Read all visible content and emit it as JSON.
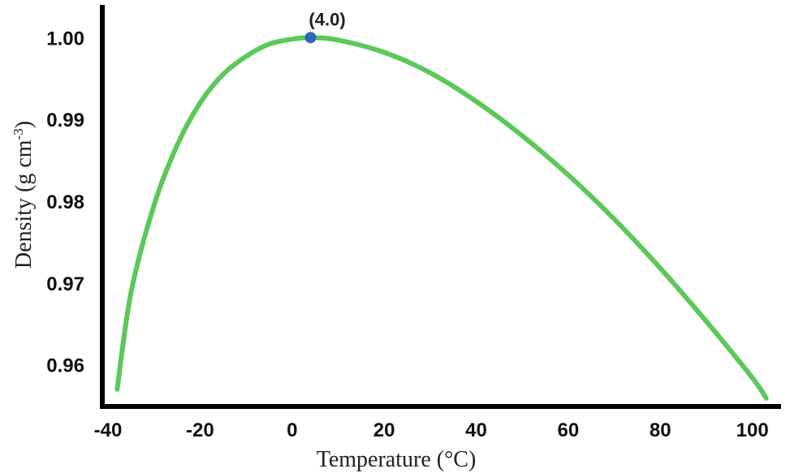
{
  "chart_data": {
    "type": "line",
    "xlabel": "Temperature (°C)",
    "ylabel_main": "Density (g cm",
    "ylabel_sup": "-3",
    "ylabel_close": ")",
    "xlim": [
      -40,
      105
    ],
    "ylim": [
      0.955,
      1.004
    ],
    "x_ticks": [
      -40,
      -20,
      0,
      20,
      40,
      60,
      80,
      100
    ],
    "x_tick_labels": [
      "-40",
      "-20",
      "0",
      "20",
      "40",
      "60",
      "80",
      "100"
    ],
    "y_ticks": [
      1.0,
      0.99,
      0.98,
      0.97,
      0.96
    ],
    "y_tick_labels": [
      "1.00",
      "0.99",
      "0.98",
      "0.97",
      "0.96"
    ],
    "grid": false,
    "series": [
      {
        "color": "#5bc85a",
        "x": [
          -38,
          -35,
          -30,
          -25,
          -20,
          -15,
          -10,
          -5,
          0,
          4,
          10,
          20,
          30,
          40,
          50,
          60,
          70,
          80,
          90,
          100,
          103
        ],
        "y": [
          0.957,
          0.9688,
          0.9795,
          0.9868,
          0.992,
          0.9955,
          0.9977,
          0.9992,
          0.9998,
          1.0,
          0.9997,
          0.9982,
          0.9957,
          0.9922,
          0.988,
          0.9832,
          0.9778,
          0.9718,
          0.9653,
          0.9584,
          0.9559
        ]
      }
    ],
    "highlight_point": {
      "x": 4.0,
      "y": 1.0,
      "label": "(4.0)",
      "color": "#2f66b8"
    }
  }
}
